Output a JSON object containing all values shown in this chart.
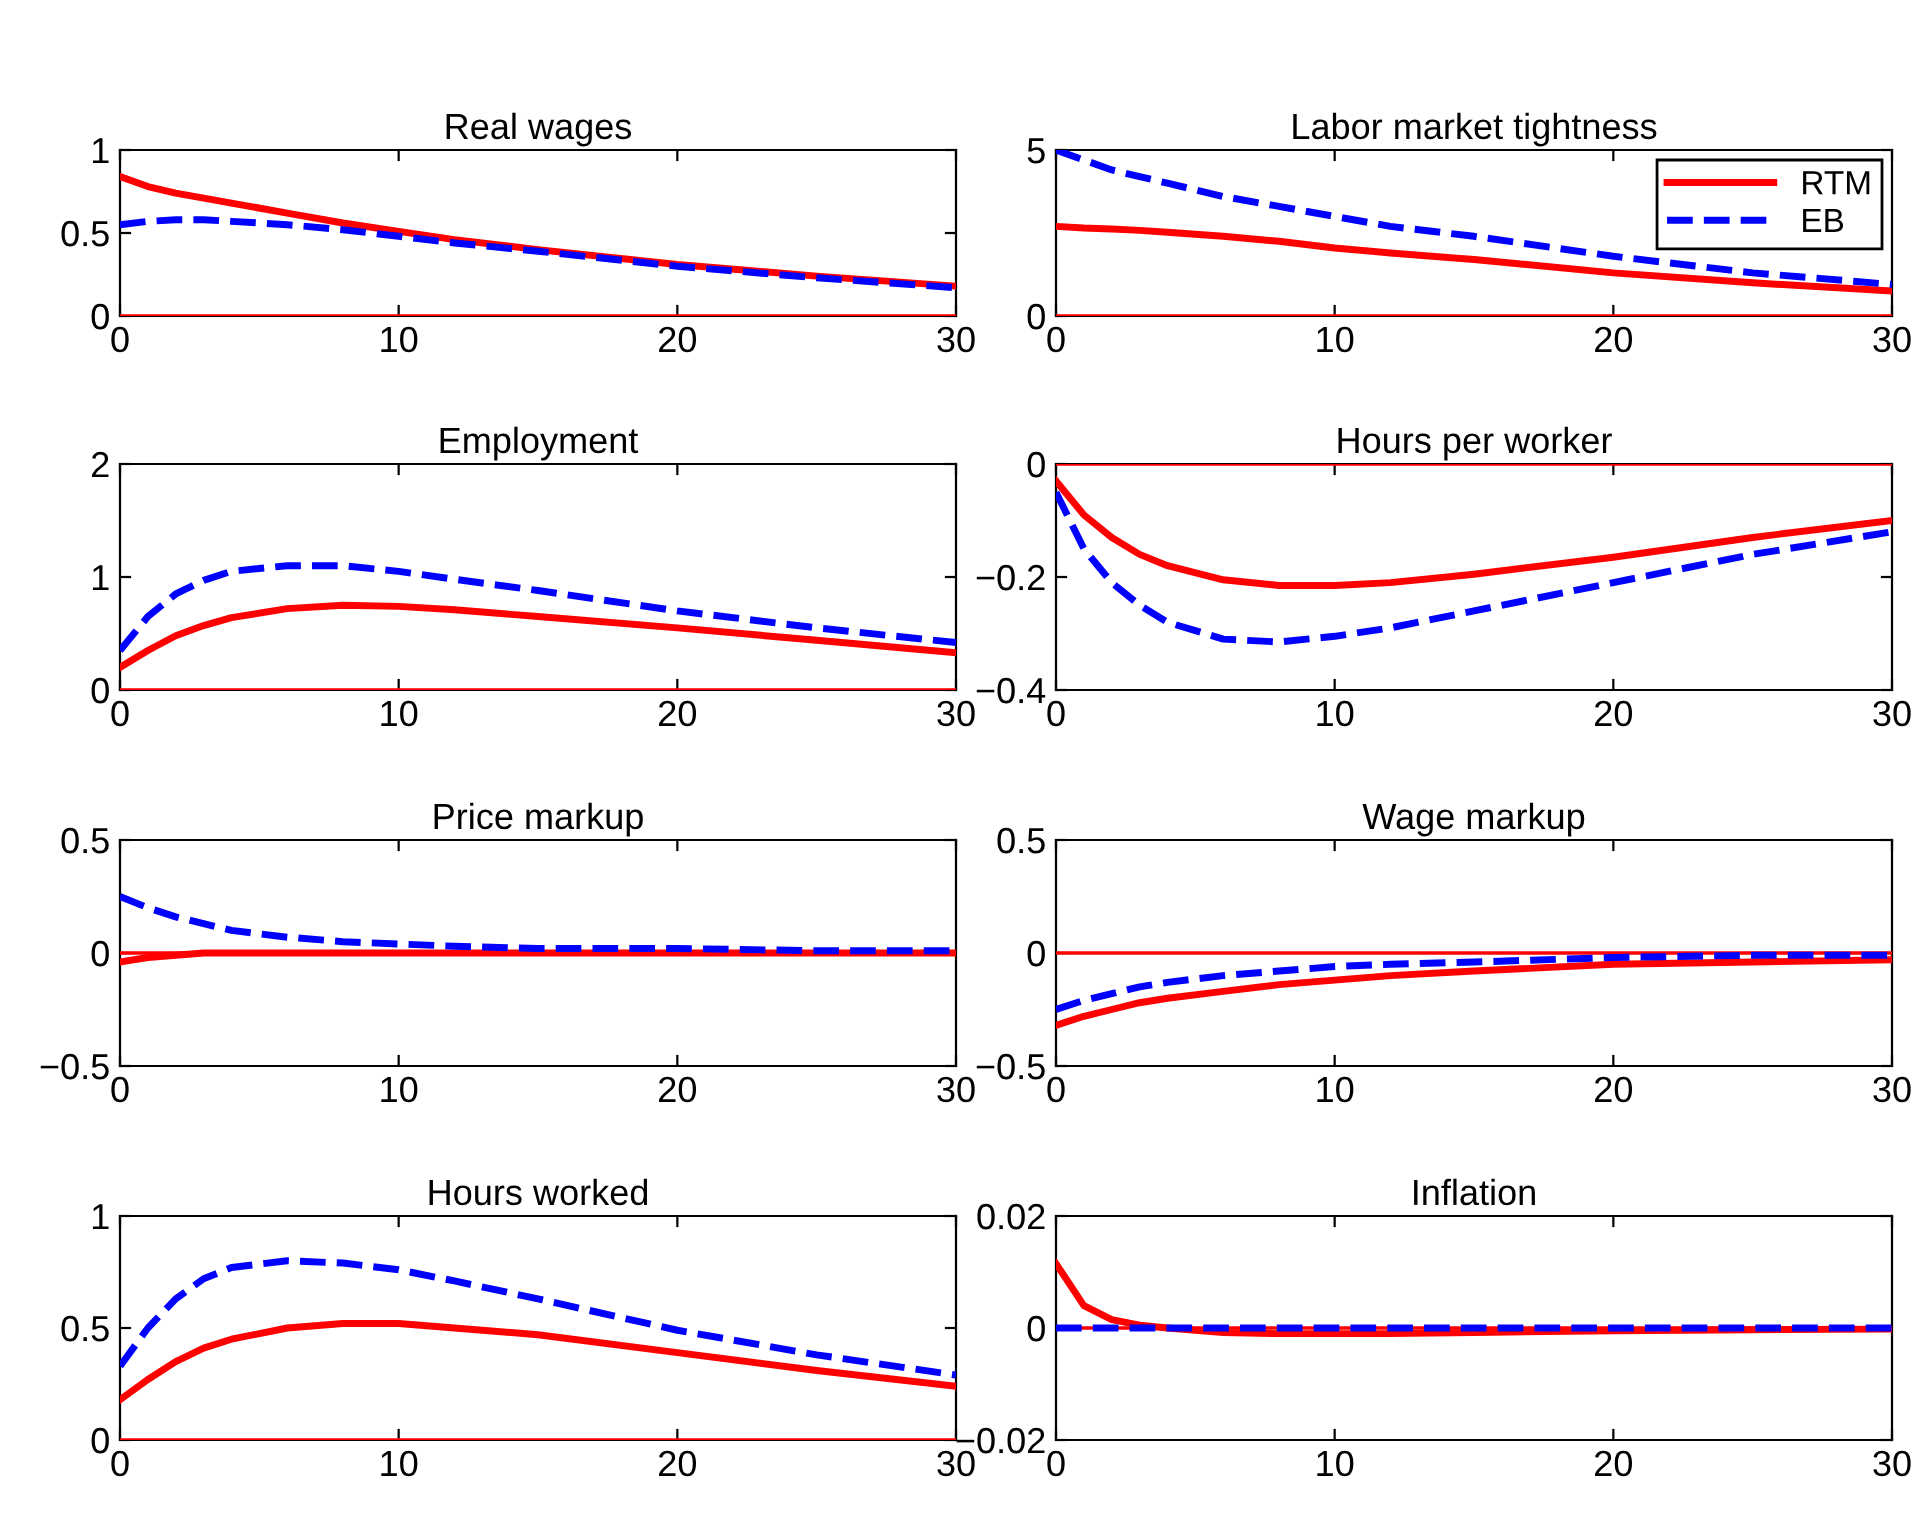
{
  "chart_data": [
    {
      "type": "line",
      "title": "Real wages",
      "x": [
        0,
        1,
        2,
        3,
        4,
        6,
        8,
        10,
        12,
        15,
        20,
        25,
        30
      ],
      "xlim": [
        0,
        30
      ],
      "xticks": [
        0,
        10,
        20,
        30
      ],
      "ylim": [
        0,
        1
      ],
      "yticks": [
        0,
        0.5,
        1
      ],
      "ref_lines": [
        {
          "axis": "y",
          "value": 0,
          "color": "#ff0000"
        }
      ],
      "series": [
        {
          "color": "#ff0000",
          "line_style": "solid",
          "values": [
            0.84,
            0.78,
            0.74,
            0.71,
            0.68,
            0.62,
            0.56,
            0.51,
            0.46,
            0.4,
            0.31,
            0.24,
            0.18
          ]
        },
        {
          "color": "#0000ff",
          "line_style": "dashed",
          "values": [
            0.55,
            0.57,
            0.58,
            0.58,
            0.57,
            0.55,
            0.52,
            0.48,
            0.44,
            0.39,
            0.3,
            0.23,
            0.17
          ]
        }
      ]
    },
    {
      "type": "line",
      "title": "Labor market tightness",
      "legend": "top right",
      "x": [
        0,
        1,
        2,
        3,
        4,
        6,
        8,
        10,
        12,
        15,
        20,
        25,
        30
      ],
      "xlim": [
        0,
        30
      ],
      "xticks": [
        0,
        10,
        20,
        30
      ],
      "ylim": [
        0,
        5
      ],
      "yticks": [
        0,
        5
      ],
      "ref_lines": [
        {
          "axis": "y",
          "value": 0,
          "color": "#ff0000"
        }
      ],
      "series": [
        {
          "name": "RTM",
          "color": "#ff0000",
          "line_style": "solid",
          "values": [
            2.7,
            2.65,
            2.62,
            2.58,
            2.52,
            2.4,
            2.25,
            2.05,
            1.9,
            1.7,
            1.3,
            1.0,
            0.75
          ]
        },
        {
          "name": "EB",
          "color": "#0000ff",
          "line_style": "dashed",
          "values": [
            5.0,
            4.7,
            4.4,
            4.2,
            4.0,
            3.6,
            3.3,
            3.0,
            2.7,
            2.4,
            1.8,
            1.3,
            0.95
          ]
        }
      ]
    },
    {
      "type": "line",
      "title": "Employment",
      "x": [
        0,
        1,
        2,
        3,
        4,
        6,
        8,
        10,
        12,
        15,
        20,
        25,
        30
      ],
      "xlim": [
        0,
        30
      ],
      "xticks": [
        0,
        10,
        20,
        30
      ],
      "ylim": [
        0,
        2
      ],
      "yticks": [
        0,
        1,
        2
      ],
      "ref_lines": [
        {
          "axis": "y",
          "value": 0,
          "color": "#ff0000"
        }
      ],
      "series": [
        {
          "color": "#ff0000",
          "line_style": "solid",
          "values": [
            0.2,
            0.35,
            0.48,
            0.57,
            0.64,
            0.72,
            0.75,
            0.74,
            0.71,
            0.65,
            0.55,
            0.44,
            0.33
          ]
        },
        {
          "color": "#0000ff",
          "line_style": "dashed",
          "values": [
            0.35,
            0.65,
            0.85,
            0.97,
            1.05,
            1.1,
            1.1,
            1.05,
            0.98,
            0.88,
            0.7,
            0.55,
            0.42
          ]
        }
      ]
    },
    {
      "type": "line",
      "title": "Hours per worker",
      "x": [
        0,
        1,
        2,
        3,
        4,
        6,
        8,
        10,
        12,
        15,
        20,
        25,
        30
      ],
      "xlim": [
        0,
        30
      ],
      "xticks": [
        0,
        10,
        20,
        30
      ],
      "ylim": [
        -0.4,
        0
      ],
      "yticks": [
        {
          "value": -0.4,
          "label": "−0.4"
        },
        {
          "value": -0.2,
          "label": "−0.2"
        },
        0
      ],
      "ref_lines": [
        {
          "axis": "y",
          "value": 0,
          "color": "#ff0000"
        }
      ],
      "series": [
        {
          "color": "#ff0000",
          "line_style": "solid",
          "values": [
            -0.03,
            -0.09,
            -0.13,
            -0.16,
            -0.18,
            -0.205,
            -0.215,
            -0.215,
            -0.21,
            -0.195,
            -0.165,
            -0.13,
            -0.1
          ]
        },
        {
          "color": "#0000ff",
          "line_style": "dashed",
          "values": [
            -0.05,
            -0.15,
            -0.21,
            -0.25,
            -0.28,
            -0.31,
            -0.315,
            -0.305,
            -0.29,
            -0.26,
            -0.21,
            -0.16,
            -0.12
          ]
        }
      ]
    },
    {
      "type": "line",
      "title": "Price markup",
      "x": [
        0,
        1,
        2,
        3,
        4,
        6,
        8,
        10,
        12,
        15,
        20,
        25,
        30
      ],
      "xlim": [
        0,
        30
      ],
      "xticks": [
        0,
        10,
        20,
        30
      ],
      "ylim": [
        -0.5,
        0.5
      ],
      "yticks": [
        {
          "value": -0.5,
          "label": "−0.5"
        },
        0,
        0.5
      ],
      "ref_lines": [
        {
          "axis": "y",
          "value": 0,
          "color": "#ff0000"
        }
      ],
      "series": [
        {
          "color": "#ff0000",
          "line_style": "solid",
          "values": [
            -0.04,
            -0.02,
            -0.01,
            0,
            0,
            0,
            0,
            0,
            0,
            0,
            0,
            0,
            0
          ]
        },
        {
          "color": "#0000ff",
          "line_style": "dashed",
          "values": [
            0.25,
            0.2,
            0.16,
            0.13,
            0.1,
            0.07,
            0.05,
            0.04,
            0.03,
            0.02,
            0.02,
            0.01,
            0.01
          ]
        }
      ]
    },
    {
      "type": "line",
      "title": "Wage markup",
      "x": [
        0,
        1,
        2,
        3,
        4,
        6,
        8,
        10,
        12,
        15,
        20,
        25,
        30
      ],
      "xlim": [
        0,
        30
      ],
      "xticks": [
        0,
        10,
        20,
        30
      ],
      "ylim": [
        -0.5,
        0.5
      ],
      "yticks": [
        {
          "value": -0.5,
          "label": "−0.5"
        },
        0,
        0.5
      ],
      "ref_lines": [
        {
          "axis": "y",
          "value": 0,
          "color": "#ff0000"
        }
      ],
      "series": [
        {
          "color": "#ff0000",
          "line_style": "solid",
          "values": [
            -0.32,
            -0.28,
            -0.25,
            -0.22,
            -0.2,
            -0.17,
            -0.14,
            -0.12,
            -0.1,
            -0.08,
            -0.05,
            -0.04,
            -0.03
          ]
        },
        {
          "color": "#0000ff",
          "line_style": "dashed",
          "values": [
            -0.25,
            -0.21,
            -0.18,
            -0.15,
            -0.13,
            -0.1,
            -0.08,
            -0.06,
            -0.05,
            -0.04,
            -0.02,
            -0.01,
            -0.01
          ]
        }
      ]
    },
    {
      "type": "line",
      "title": "Hours worked",
      "x": [
        0,
        1,
        2,
        3,
        4,
        6,
        8,
        10,
        12,
        15,
        20,
        25,
        30
      ],
      "xlim": [
        0,
        30
      ],
      "xticks": [
        0,
        10,
        20,
        30
      ],
      "ylim": [
        0,
        1
      ],
      "yticks": [
        0,
        0.5,
        1
      ],
      "ref_lines": [
        {
          "axis": "y",
          "value": 0,
          "color": "#ff0000"
        }
      ],
      "series": [
        {
          "color": "#ff0000",
          "line_style": "solid",
          "values": [
            0.18,
            0.27,
            0.35,
            0.41,
            0.45,
            0.5,
            0.52,
            0.52,
            0.5,
            0.47,
            0.39,
            0.31,
            0.24
          ]
        },
        {
          "color": "#0000ff",
          "line_style": "dashed",
          "values": [
            0.33,
            0.5,
            0.63,
            0.72,
            0.77,
            0.8,
            0.79,
            0.76,
            0.71,
            0.63,
            0.49,
            0.38,
            0.29
          ]
        }
      ]
    },
    {
      "type": "line",
      "title": "Inflation",
      "x": [
        0,
        1,
        2,
        3,
        4,
        6,
        8,
        10,
        12,
        15,
        20,
        25,
        30
      ],
      "xlim": [
        0,
        30
      ],
      "xticks": [
        0,
        10,
        20,
        30
      ],
      "ylim": [
        -0.02,
        0.02
      ],
      "yticks": [
        {
          "value": -0.02,
          "label": "−0.02"
        },
        0,
        0.02
      ],
      "ref_lines": [
        {
          "axis": "y",
          "value": 0,
          "color": "#ff0000"
        }
      ],
      "series": [
        {
          "color": "#ff0000",
          "line_style": "solid",
          "values": [
            0.0115,
            0.004,
            0.0015,
            0.0005,
            0,
            -0.0008,
            -0.001,
            -0.001,
            -0.001,
            -0.0008,
            -0.0005,
            -0.0003,
            -0.0002
          ]
        },
        {
          "color": "#0000ff",
          "line_style": "dashed",
          "values": [
            0,
            0,
            0,
            0,
            0,
            0,
            0,
            0,
            0,
            0,
            0,
            0,
            0
          ]
        }
      ]
    }
  ]
}
